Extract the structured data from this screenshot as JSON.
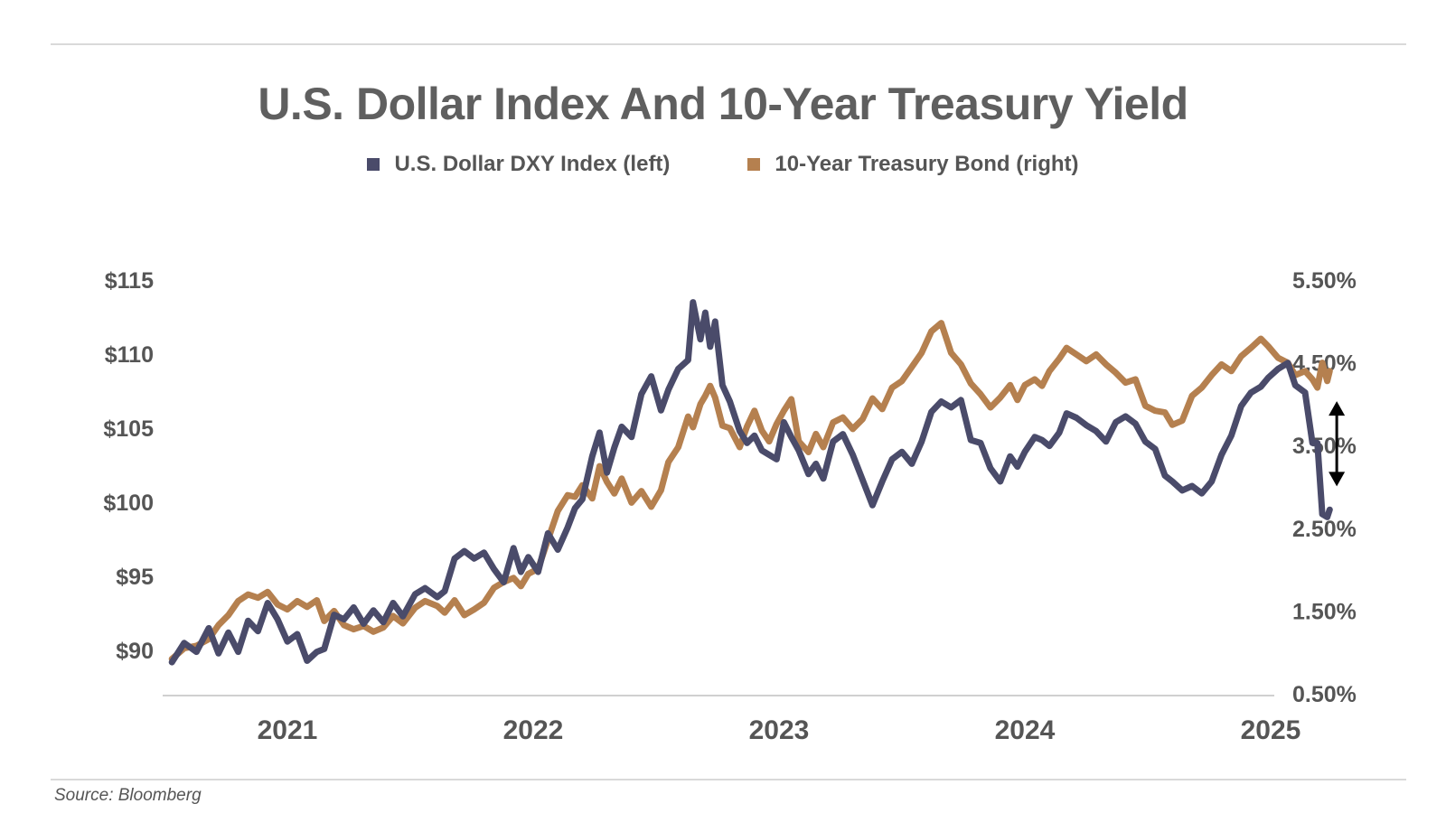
{
  "title": "U.S. Dollar Index And 10-Year Treasury Yield",
  "legend": [
    {
      "label": "U.S. Dollar DXY Index (left)",
      "color": "#4a4b6a"
    },
    {
      "label": "10-Year Treasury Bond (right)",
      "color": "#b5804f"
    }
  ],
  "source": "Source: Bloomberg",
  "chart_data": {
    "type": "line",
    "title": "U.S. Dollar Index And 10-Year Treasury Yield",
    "x_range": [
      2020.53,
      2025.2
    ],
    "x_ticks": [
      {
        "value": 2021,
        "label": "2021"
      },
      {
        "value": 2022,
        "label": "2022"
      },
      {
        "value": 2023,
        "label": "2023"
      },
      {
        "value": 2024,
        "label": "2024"
      },
      {
        "value": 2025,
        "label": "2025"
      }
    ],
    "y_left": {
      "ylim": [
        87,
        115
      ],
      "ticks": [
        {
          "value": 115,
          "label": "$115"
        },
        {
          "value": 110,
          "label": "$110"
        },
        {
          "value": 105,
          "label": "$105"
        },
        {
          "value": 100,
          "label": "$100"
        },
        {
          "value": 95,
          "label": "$95"
        },
        {
          "value": 90,
          "label": "$90"
        }
      ]
    },
    "y_right": {
      "ylim": [
        0.5,
        5.5
      ],
      "ticks": [
        {
          "value": 5.5,
          "label": "5.50%"
        },
        {
          "value": 4.5,
          "label": "4.50%"
        },
        {
          "value": 3.5,
          "label": "3.50%"
        },
        {
          "value": 2.5,
          "label": "2.50%"
        },
        {
          "value": 1.5,
          "label": "1.50%"
        },
        {
          "value": 0.5,
          "label": "0.50%"
        }
      ]
    },
    "grid": false,
    "legend_position": "top-center",
    "series": [
      {
        "name": "U.S. Dollar DXY Index (left)",
        "axis": "left",
        "color": "#4a4b6a",
        "points": [
          [
            2020.53,
            89.2
          ],
          [
            2020.58,
            90.5
          ],
          [
            2020.63,
            89.9
          ],
          [
            2020.68,
            91.5
          ],
          [
            2020.72,
            89.8
          ],
          [
            2020.76,
            91.2
          ],
          [
            2020.8,
            89.9
          ],
          [
            2020.84,
            92.0
          ],
          [
            2020.88,
            91.3
          ],
          [
            2020.92,
            93.2
          ],
          [
            2020.96,
            92.1
          ],
          [
            2021.0,
            90.6
          ],
          [
            2021.04,
            91.1
          ],
          [
            2021.08,
            89.3
          ],
          [
            2021.12,
            89.9
          ],
          [
            2021.15,
            90.1
          ],
          [
            2021.19,
            92.4
          ],
          [
            2021.23,
            92.1
          ],
          [
            2021.27,
            92.9
          ],
          [
            2021.31,
            91.8
          ],
          [
            2021.35,
            92.7
          ],
          [
            2021.39,
            91.9
          ],
          [
            2021.43,
            93.2
          ],
          [
            2021.47,
            92.3
          ],
          [
            2021.52,
            93.8
          ],
          [
            2021.56,
            94.2
          ],
          [
            2021.61,
            93.6
          ],
          [
            2021.64,
            94.0
          ],
          [
            2021.68,
            96.2
          ],
          [
            2021.72,
            96.7
          ],
          [
            2021.76,
            96.2
          ],
          [
            2021.8,
            96.6
          ],
          [
            2021.84,
            95.5
          ],
          [
            2021.88,
            94.6
          ],
          [
            2021.92,
            96.9
          ],
          [
            2021.95,
            95.3
          ],
          [
            2021.98,
            96.3
          ],
          [
            2022.02,
            95.3
          ],
          [
            2022.06,
            97.9
          ],
          [
            2022.1,
            96.8
          ],
          [
            2022.14,
            98.3
          ],
          [
            2022.17,
            99.6
          ],
          [
            2022.2,
            100.2
          ],
          [
            2022.24,
            103.1
          ],
          [
            2022.27,
            104.7
          ],
          [
            2022.3,
            102.0
          ],
          [
            2022.33,
            103.7
          ],
          [
            2022.36,
            105.1
          ],
          [
            2022.4,
            104.4
          ],
          [
            2022.44,
            107.3
          ],
          [
            2022.48,
            108.5
          ],
          [
            2022.52,
            106.2
          ],
          [
            2022.55,
            107.6
          ],
          [
            2022.59,
            109.0
          ],
          [
            2022.63,
            109.6
          ],
          [
            2022.65,
            113.5
          ],
          [
            2022.68,
            111.0
          ],
          [
            2022.7,
            112.8
          ],
          [
            2022.72,
            110.5
          ],
          [
            2022.74,
            112.2
          ],
          [
            2022.77,
            107.9
          ],
          [
            2022.8,
            106.8
          ],
          [
            2022.84,
            104.8
          ],
          [
            2022.87,
            104.0
          ],
          [
            2022.9,
            104.5
          ],
          [
            2022.93,
            103.5
          ],
          [
            2022.96,
            103.2
          ],
          [
            2022.99,
            102.9
          ],
          [
            2023.02,
            105.4
          ],
          [
            2023.05,
            104.4
          ],
          [
            2023.08,
            103.5
          ],
          [
            2023.12,
            101.9
          ],
          [
            2023.15,
            102.6
          ],
          [
            2023.18,
            101.6
          ],
          [
            2023.22,
            104.1
          ],
          [
            2023.26,
            104.6
          ],
          [
            2023.3,
            103.2
          ],
          [
            2023.34,
            101.5
          ],
          [
            2023.38,
            99.8
          ],
          [
            2023.42,
            101.4
          ],
          [
            2023.46,
            102.9
          ],
          [
            2023.5,
            103.4
          ],
          [
            2023.54,
            102.6
          ],
          [
            2023.58,
            104.1
          ],
          [
            2023.62,
            106.1
          ],
          [
            2023.66,
            106.8
          ],
          [
            2023.7,
            106.4
          ],
          [
            2023.74,
            106.9
          ],
          [
            2023.78,
            104.2
          ],
          [
            2023.82,
            104.0
          ],
          [
            2023.86,
            102.3
          ],
          [
            2023.9,
            101.4
          ],
          [
            2023.94,
            103.1
          ],
          [
            2023.97,
            102.4
          ],
          [
            2024.0,
            103.4
          ],
          [
            2024.04,
            104.4
          ],
          [
            2024.07,
            104.2
          ],
          [
            2024.1,
            103.8
          ],
          [
            2024.14,
            104.7
          ],
          [
            2024.17,
            106.0
          ],
          [
            2024.21,
            105.7
          ],
          [
            2024.25,
            105.2
          ],
          [
            2024.29,
            104.8
          ],
          [
            2024.33,
            104.1
          ],
          [
            2024.37,
            105.4
          ],
          [
            2024.41,
            105.8
          ],
          [
            2024.45,
            105.3
          ],
          [
            2024.49,
            104.1
          ],
          [
            2024.53,
            103.6
          ],
          [
            2024.57,
            101.8
          ],
          [
            2024.6,
            101.4
          ],
          [
            2024.64,
            100.8
          ],
          [
            2024.68,
            101.1
          ],
          [
            2024.72,
            100.6
          ],
          [
            2024.76,
            101.4
          ],
          [
            2024.8,
            103.2
          ],
          [
            2024.84,
            104.5
          ],
          [
            2024.88,
            106.5
          ],
          [
            2024.92,
            107.4
          ],
          [
            2024.96,
            107.8
          ],
          [
            2024.99,
            108.4
          ],
          [
            2025.03,
            109.0
          ],
          [
            2025.07,
            109.4
          ],
          [
            2025.1,
            107.9
          ],
          [
            2025.14,
            107.4
          ],
          [
            2025.17,
            104.0
          ],
          [
            2025.19,
            104.0
          ],
          [
            2025.21,
            99.2
          ],
          [
            2025.23,
            99.0
          ],
          [
            2025.24,
            99.5
          ]
        ]
      },
      {
        "name": "10-Year Treasury Bond (right)",
        "axis": "right",
        "color": "#b5804f",
        "points": [
          [
            2020.53,
            0.92
          ],
          [
            2020.58,
            1.05
          ],
          [
            2020.63,
            1.08
          ],
          [
            2020.68,
            1.16
          ],
          [
            2020.72,
            1.33
          ],
          [
            2020.76,
            1.45
          ],
          [
            2020.8,
            1.62
          ],
          [
            2020.84,
            1.7
          ],
          [
            2020.88,
            1.66
          ],
          [
            2020.92,
            1.73
          ],
          [
            2020.96,
            1.58
          ],
          [
            2021.0,
            1.52
          ],
          [
            2021.04,
            1.62
          ],
          [
            2021.08,
            1.55
          ],
          [
            2021.12,
            1.63
          ],
          [
            2021.15,
            1.38
          ],
          [
            2021.19,
            1.5
          ],
          [
            2021.23,
            1.33
          ],
          [
            2021.27,
            1.28
          ],
          [
            2021.31,
            1.32
          ],
          [
            2021.35,
            1.25
          ],
          [
            2021.39,
            1.3
          ],
          [
            2021.43,
            1.44
          ],
          [
            2021.47,
            1.35
          ],
          [
            2021.52,
            1.54
          ],
          [
            2021.56,
            1.62
          ],
          [
            2021.61,
            1.56
          ],
          [
            2021.64,
            1.48
          ],
          [
            2021.68,
            1.63
          ],
          [
            2021.72,
            1.45
          ],
          [
            2021.76,
            1.52
          ],
          [
            2021.8,
            1.6
          ],
          [
            2021.84,
            1.78
          ],
          [
            2021.88,
            1.85
          ],
          [
            2021.92,
            1.9
          ],
          [
            2021.95,
            1.8
          ],
          [
            2021.98,
            1.95
          ],
          [
            2022.02,
            2.01
          ],
          [
            2022.06,
            2.36
          ],
          [
            2022.1,
            2.71
          ],
          [
            2022.14,
            2.9
          ],
          [
            2022.17,
            2.88
          ],
          [
            2022.2,
            3.02
          ],
          [
            2022.24,
            2.86
          ],
          [
            2022.27,
            3.25
          ],
          [
            2022.3,
            3.06
          ],
          [
            2022.33,
            2.92
          ],
          [
            2022.36,
            3.1
          ],
          [
            2022.4,
            2.81
          ],
          [
            2022.44,
            2.95
          ],
          [
            2022.48,
            2.76
          ],
          [
            2022.52,
            2.96
          ],
          [
            2022.55,
            3.3
          ],
          [
            2022.59,
            3.48
          ],
          [
            2022.63,
            3.85
          ],
          [
            2022.65,
            3.72
          ],
          [
            2022.68,
            4.0
          ],
          [
            2022.7,
            4.1
          ],
          [
            2022.72,
            4.22
          ],
          [
            2022.74,
            4.08
          ],
          [
            2022.77,
            3.74
          ],
          [
            2022.8,
            3.71
          ],
          [
            2022.84,
            3.48
          ],
          [
            2022.87,
            3.73
          ],
          [
            2022.9,
            3.92
          ],
          [
            2022.93,
            3.68
          ],
          [
            2022.96,
            3.55
          ],
          [
            2022.99,
            3.76
          ],
          [
            2023.02,
            3.92
          ],
          [
            2023.05,
            4.06
          ],
          [
            2023.08,
            3.55
          ],
          [
            2023.12,
            3.42
          ],
          [
            2023.15,
            3.64
          ],
          [
            2023.18,
            3.48
          ],
          [
            2023.22,
            3.78
          ],
          [
            2023.26,
            3.84
          ],
          [
            2023.3,
            3.7
          ],
          [
            2023.34,
            3.82
          ],
          [
            2023.38,
            4.07
          ],
          [
            2023.42,
            3.94
          ],
          [
            2023.46,
            4.2
          ],
          [
            2023.5,
            4.28
          ],
          [
            2023.54,
            4.45
          ],
          [
            2023.58,
            4.62
          ],
          [
            2023.62,
            4.88
          ],
          [
            2023.66,
            4.98
          ],
          [
            2023.7,
            4.62
          ],
          [
            2023.74,
            4.48
          ],
          [
            2023.78,
            4.25
          ],
          [
            2023.82,
            4.12
          ],
          [
            2023.86,
            3.96
          ],
          [
            2023.9,
            4.08
          ],
          [
            2023.94,
            4.23
          ],
          [
            2023.97,
            4.05
          ],
          [
            2024.0,
            4.23
          ],
          [
            2024.04,
            4.3
          ],
          [
            2024.07,
            4.22
          ],
          [
            2024.1,
            4.4
          ],
          [
            2024.14,
            4.55
          ],
          [
            2024.17,
            4.68
          ],
          [
            2024.21,
            4.6
          ],
          [
            2024.25,
            4.52
          ],
          [
            2024.29,
            4.6
          ],
          [
            2024.33,
            4.48
          ],
          [
            2024.37,
            4.38
          ],
          [
            2024.41,
            4.26
          ],
          [
            2024.45,
            4.3
          ],
          [
            2024.49,
            3.98
          ],
          [
            2024.53,
            3.92
          ],
          [
            2024.57,
            3.9
          ],
          [
            2024.6,
            3.75
          ],
          [
            2024.64,
            3.8
          ],
          [
            2024.68,
            4.1
          ],
          [
            2024.72,
            4.2
          ],
          [
            2024.76,
            4.35
          ],
          [
            2024.8,
            4.48
          ],
          [
            2024.84,
            4.4
          ],
          [
            2024.88,
            4.58
          ],
          [
            2024.92,
            4.68
          ],
          [
            2024.96,
            4.79
          ],
          [
            2024.99,
            4.7
          ],
          [
            2025.03,
            4.56
          ],
          [
            2025.07,
            4.5
          ],
          [
            2025.1,
            4.35
          ],
          [
            2025.14,
            4.4
          ],
          [
            2025.17,
            4.3
          ],
          [
            2025.19,
            4.2
          ],
          [
            2025.21,
            4.5
          ],
          [
            2025.23,
            4.28
          ],
          [
            2025.24,
            4.4
          ]
        ]
      }
    ],
    "annotations": [
      {
        "type": "double-arrow",
        "x": 2025.21,
        "y_from_left_axis": 101.2,
        "y_to_left_axis": 106.7
      }
    ]
  }
}
